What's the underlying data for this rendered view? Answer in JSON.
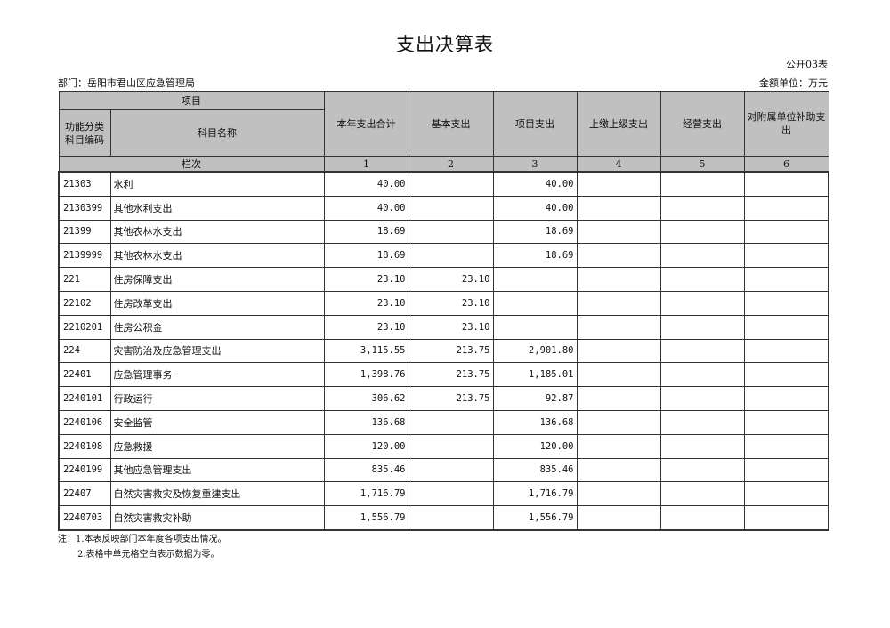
{
  "title": "支出决算表",
  "form_no": "公开03表",
  "department": "部门：岳阳市君山区应急管理局",
  "unit": "金额单位：万元",
  "headers": {
    "item": "项目",
    "code": "功能分类科目编码",
    "name": "科目名称",
    "cols": [
      "本年支出合计",
      "基本支出",
      "项目支出",
      "上缴上级支出",
      "经营支出",
      "对附属单位补助支出"
    ],
    "seq_label": "栏次",
    "seq": [
      "1",
      "2",
      "3",
      "4",
      "5",
      "6"
    ]
  },
  "rows": [
    {
      "code": "21303",
      "name": "水利",
      "v": [
        "40.00",
        "",
        "40.00",
        "",
        "",
        ""
      ]
    },
    {
      "code": "2130399",
      "name": "其他水利支出",
      "v": [
        "40.00",
        "",
        "40.00",
        "",
        "",
        ""
      ]
    },
    {
      "code": "21399",
      "name": "其他农林水支出",
      "v": [
        "18.69",
        "",
        "18.69",
        "",
        "",
        ""
      ]
    },
    {
      "code": "2139999",
      "name": "其他农林水支出",
      "v": [
        "18.69",
        "",
        "18.69",
        "",
        "",
        ""
      ]
    },
    {
      "code": "221",
      "name": "住房保障支出",
      "v": [
        "23.10",
        "23.10",
        "",
        "",
        "",
        ""
      ]
    },
    {
      "code": "22102",
      "name": "住房改革支出",
      "v": [
        "23.10",
        "23.10",
        "",
        "",
        "",
        ""
      ]
    },
    {
      "code": "2210201",
      "name": "住房公积金",
      "v": [
        "23.10",
        "23.10",
        "",
        "",
        "",
        ""
      ]
    },
    {
      "code": "224",
      "name": "灾害防治及应急管理支出",
      "v": [
        "3,115.55",
        "213.75",
        "2,901.80",
        "",
        "",
        ""
      ]
    },
    {
      "code": "22401",
      "name": "应急管理事务",
      "v": [
        "1,398.76",
        "213.75",
        "1,185.01",
        "",
        "",
        ""
      ]
    },
    {
      "code": "2240101",
      "name": "行政运行",
      "v": [
        "306.62",
        "213.75",
        "92.87",
        "",
        "",
        ""
      ]
    },
    {
      "code": "2240106",
      "name": "安全监管",
      "v": [
        "136.68",
        "",
        "136.68",
        "",
        "",
        ""
      ]
    },
    {
      "code": "2240108",
      "name": "应急救援",
      "v": [
        "120.00",
        "",
        "120.00",
        "",
        "",
        ""
      ]
    },
    {
      "code": "2240199",
      "name": "其他应急管理支出",
      "v": [
        "835.46",
        "",
        "835.46",
        "",
        "",
        ""
      ]
    },
    {
      "code": "22407",
      "name": "自然灾害救灾及恢复重建支出",
      "v": [
        "1,716.79",
        "",
        "1,716.79",
        "",
        "",
        ""
      ]
    },
    {
      "code": "2240703",
      "name": "自然灾害救灾补助",
      "v": [
        "1,556.79",
        "",
        "1,556.79",
        "",
        "",
        ""
      ]
    }
  ],
  "notes": [
    "注：1.本表反映部门本年度各项支出情况。",
    "2.表格中单元格空白表示数据为零。"
  ]
}
